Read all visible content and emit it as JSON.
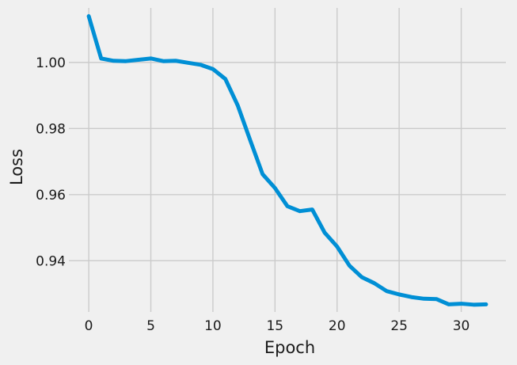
{
  "chart_data": {
    "type": "line",
    "title": "",
    "xlabel": "Epoch",
    "ylabel": "Loss",
    "xlim": [
      -1.6,
      33.6
    ],
    "ylim": [
      0.9245,
      1.0165
    ],
    "xticks": [
      0,
      5,
      10,
      15,
      20,
      25,
      30
    ],
    "xtick_labels": [
      "0",
      "5",
      "10",
      "15",
      "20",
      "25",
      "30"
    ],
    "yticks": [
      0.94,
      0.96,
      0.98,
      1.0
    ],
    "ytick_labels": [
      "0.94",
      "0.96",
      "0.98",
      "1.00"
    ],
    "grid": true,
    "legend": false,
    "colors": {
      "background": "#f0f0f0",
      "grid": "#cbcbcb",
      "line": "#008fd5",
      "text": "#1a1a1a"
    },
    "series": [
      {
        "x": [
          0,
          1,
          2,
          3,
          4,
          5,
          6,
          7,
          8,
          9,
          10,
          11,
          12,
          13,
          14,
          15,
          16,
          17,
          18,
          19,
          20,
          21,
          22,
          23,
          24,
          25,
          26,
          27,
          28,
          29,
          30,
          31,
          32
        ],
        "values": [
          1.014,
          1.0012,
          1.0005,
          1.0004,
          1.0008,
          1.0012,
          1.0004,
          1.0005,
          0.9999,
          0.9993,
          0.998,
          0.995,
          0.987,
          0.9765,
          0.9662,
          0.962,
          0.9565,
          0.955,
          0.9555,
          0.9485,
          0.9443,
          0.9385,
          0.935,
          0.9332,
          0.9308,
          0.9298,
          0.929,
          0.9285,
          0.9284,
          0.9268,
          0.927,
          0.9267,
          0.9268
        ]
      }
    ]
  }
}
